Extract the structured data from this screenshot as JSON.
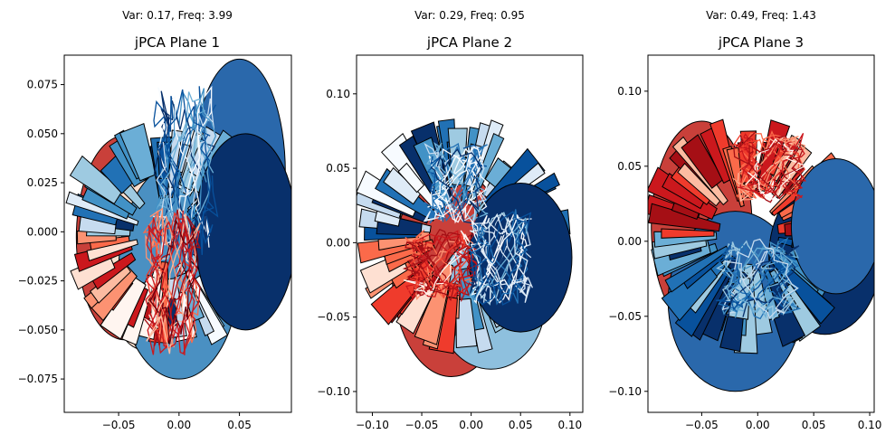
{
  "chart_data": [
    {
      "type": "scatter",
      "annotation": "Var: 0.17, Freq: 3.99",
      "title": "jPCA Plane 1",
      "xlabel": "",
      "ylabel": "",
      "xlim": [
        -0.095,
        0.093
      ],
      "ylim": [
        -0.092,
        0.09
      ],
      "xticks": [
        -0.05,
        0.0,
        0.05
      ],
      "xtick_labels": [
        "−0.05",
        "0.00",
        "0.05"
      ],
      "yticks": [
        -0.075,
        -0.05,
        -0.025,
        0.0,
        0.025,
        0.05,
        0.075
      ],
      "ytick_labels": [
        "−0.075",
        "−0.050",
        "−0.025",
        "0.000",
        "0.025",
        "0.050",
        "0.075"
      ],
      "grid": false,
      "start_ellipses": [
        {
          "x": -0.045,
          "y": -0.003,
          "rx": 0.04,
          "ry": 0.052,
          "color": "#c9403a"
        },
        {
          "x": -0.03,
          "y": -0.01,
          "rx": 0.033,
          "ry": 0.05,
          "color": "#fde0cf"
        },
        {
          "x": 0.0,
          "y": -0.02,
          "rx": 0.05,
          "ry": 0.055,
          "color": "#4a90c2"
        },
        {
          "x": 0.05,
          "y": 0.03,
          "rx": 0.038,
          "ry": 0.058,
          "color": "#2a68ab"
        },
        {
          "x": 0.055,
          "y": 0.0,
          "rx": 0.042,
          "ry": 0.05,
          "color": "#08306b"
        }
      ],
      "trajectory_clusters": [
        {
          "name": "blue",
          "cx": 0.005,
          "cy": 0.03,
          "sx": 0.025,
          "sy": 0.042
        },
        {
          "name": "red",
          "cx": -0.005,
          "cy": -0.025,
          "sx": 0.022,
          "sy": 0.035
        }
      ]
    },
    {
      "type": "scatter",
      "annotation": "Var: 0.29, Freq: 0.95",
      "title": "jPCA Plane 2",
      "xlabel": "",
      "ylabel": "",
      "xlim": [
        -0.116,
        0.113
      ],
      "ylim": [
        -0.114,
        0.126
      ],
      "xticks": [
        -0.1,
        -0.05,
        0.0,
        0.05,
        0.1
      ],
      "xtick_labels": [
        "−0.10",
        "−0.05",
        "0.00",
        "0.05",
        "0.10"
      ],
      "yticks": [
        -0.1,
        -0.05,
        0.0,
        0.05,
        0.1
      ],
      "ytick_labels": [
        "−0.10",
        "−0.05",
        "0.00",
        "0.05",
        "0.10"
      ],
      "grid": false,
      "start_ellipses": [
        {
          "x": -0.02,
          "y": -0.02,
          "rx": 0.06,
          "ry": 0.07,
          "color": "#c9403a"
        },
        {
          "x": 0.02,
          "y": -0.04,
          "rx": 0.055,
          "ry": 0.045,
          "color": "#8ec0de"
        },
        {
          "x": 0.05,
          "y": -0.01,
          "rx": 0.052,
          "ry": 0.05,
          "color": "#08306b"
        }
      ],
      "trajectory_clusters": [
        {
          "name": "blue",
          "cx": -0.015,
          "cy": 0.04,
          "sx": 0.03,
          "sy": 0.025
        },
        {
          "name": "red",
          "cx": -0.03,
          "cy": -0.015,
          "sx": 0.035,
          "sy": 0.022
        },
        {
          "name": "dark",
          "cx": 0.03,
          "cy": -0.01,
          "sx": 0.03,
          "sy": 0.03
        }
      ]
    },
    {
      "type": "scatter",
      "annotation": "Var: 0.49, Freq: 1.43",
      "title": "jPCA Plane 3",
      "xlabel": "",
      "ylabel": "",
      "xlim": [
        -0.098,
        0.104
      ],
      "ylim": [
        -0.114,
        0.124
      ],
      "xticks": [
        -0.05,
        0.0,
        0.05,
        0.1
      ],
      "xtick_labels": [
        "−0.05",
        "0.00",
        "0.05",
        "0.10"
      ],
      "yticks": [
        -0.1,
        -0.05,
        0.0,
        0.05,
        0.1
      ],
      "ytick_labels": [
        "−0.10",
        "−0.05",
        "0.00",
        "0.05",
        "0.10"
      ],
      "grid": false,
      "start_ellipses": [
        {
          "x": -0.05,
          "y": 0.01,
          "rx": 0.045,
          "ry": 0.07,
          "color": "#c9403a"
        },
        {
          "x": -0.02,
          "y": -0.04,
          "rx": 0.06,
          "ry": 0.06,
          "color": "#2a68ab"
        },
        {
          "x": 0.06,
          "y": -0.01,
          "rx": 0.05,
          "ry": 0.052,
          "color": "#08306b"
        },
        {
          "x": 0.07,
          "y": 0.01,
          "rx": 0.04,
          "ry": 0.045,
          "color": "#2a68ab"
        }
      ],
      "trajectory_clusters": [
        {
          "name": "red",
          "cx": 0.01,
          "cy": 0.05,
          "sx": 0.03,
          "sy": 0.022
        },
        {
          "name": "blue",
          "cx": 0.0,
          "cy": -0.025,
          "sx": 0.035,
          "sy": 0.025
        }
      ]
    }
  ],
  "colors": {
    "reds": [
      "#67000d",
      "#a50f15",
      "#cb181d",
      "#ef3b2c",
      "#fb6a4a",
      "#fc9272",
      "#fcbba1",
      "#fee0d2",
      "#fff5f0"
    ],
    "blues": [
      "#f7fbff",
      "#deebf7",
      "#c6dbef",
      "#9ecae1",
      "#6baed6",
      "#4292c6",
      "#2171b5",
      "#08519c",
      "#08306b"
    ],
    "edge": "#000000"
  }
}
